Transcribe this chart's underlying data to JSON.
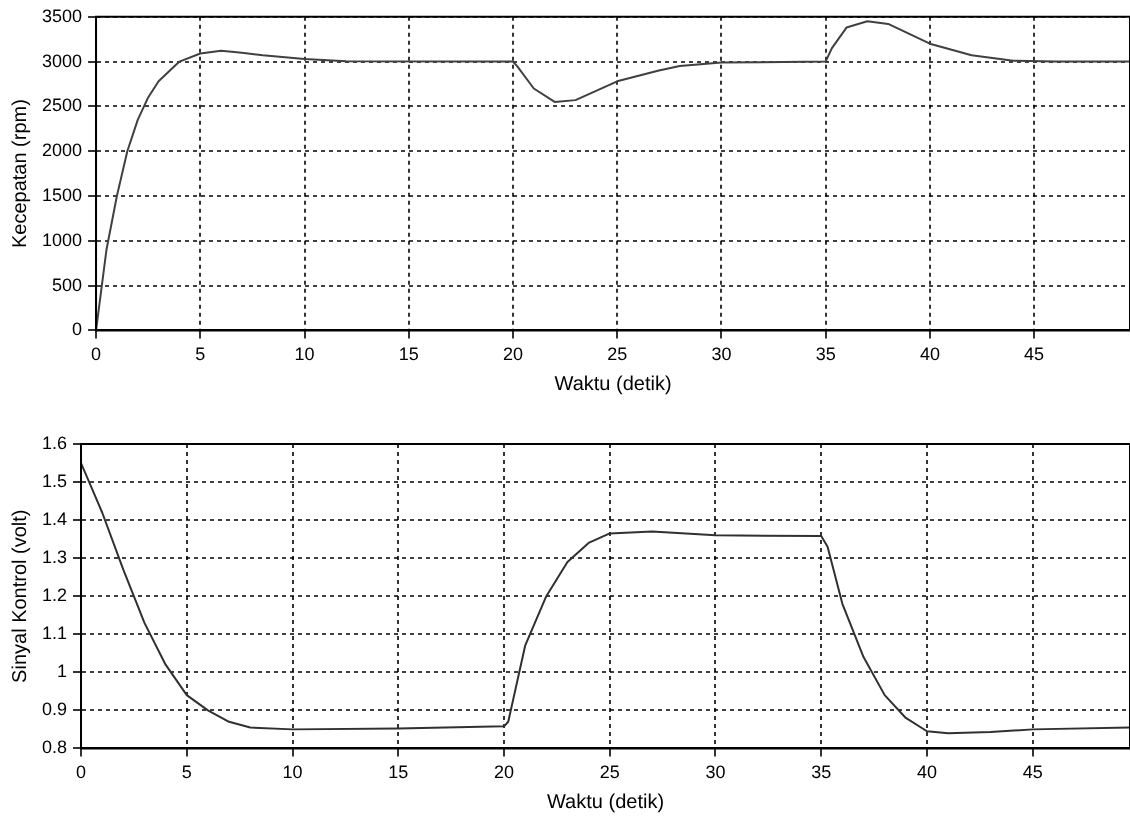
{
  "chart_data": [
    {
      "type": "line",
      "xlabel": "Waktu (detik)",
      "ylabel": "Kecepatan (rpm)",
      "xlim": [
        0,
        49.6
      ],
      "xticks": [
        0,
        5,
        10,
        15,
        20,
        25,
        30,
        35,
        40,
        45
      ],
      "ylim": [
        0,
        3500
      ],
      "yticks": [
        0,
        500,
        1000,
        1500,
        2000,
        2500,
        3000,
        3500
      ],
      "grid": true,
      "line_style": "solid",
      "marker": "none",
      "series": [
        {
          "color": "#404040",
          "x": [
            0,
            0.5,
            1,
            1.5,
            2,
            2.5,
            3,
            4,
            5,
            6,
            7,
            8,
            10,
            12,
            20,
            20.2,
            21,
            22,
            23,
            25,
            27,
            28,
            30,
            35,
            35.3,
            36,
            37,
            38,
            40,
            42,
            44,
            46,
            49.6
          ],
          "values": [
            0,
            900,
            1500,
            2000,
            2350,
            2600,
            2780,
            3000,
            3090,
            3120,
            3100,
            3070,
            3030,
            3005,
            3000,
            2950,
            2700,
            2550,
            2570,
            2780,
            2900,
            2950,
            2990,
            3000,
            3150,
            3380,
            3450,
            3420,
            3200,
            3070,
            3010,
            3000,
            3000
          ]
        }
      ]
    },
    {
      "type": "line",
      "xlabel": "Waktu (detik)",
      "ylabel": "Sinyal Kontrol (volt)",
      "xlim": [
        0,
        49.6
      ],
      "xticks": [
        0,
        5,
        10,
        15,
        20,
        25,
        30,
        35,
        40,
        45
      ],
      "ylim": [
        0.8,
        1.6
      ],
      "yticks": [
        0.8,
        0.9,
        1,
        1.1,
        1.2,
        1.3,
        1.4,
        1.5,
        1.6
      ],
      "grid": true,
      "line_style": "solid",
      "marker": "none",
      "series": [
        {
          "color": "#303030",
          "x": [
            0,
            1,
            2,
            3,
            4,
            5,
            6,
            7,
            8,
            10,
            15,
            20,
            20.2,
            21,
            22,
            23,
            24,
            25,
            27,
            30,
            35,
            35.3,
            36,
            37,
            38,
            39,
            40,
            41,
            43,
            45,
            49.6
          ],
          "values": [
            1.55,
            1.42,
            1.27,
            1.13,
            1.02,
            0.94,
            0.9,
            0.87,
            0.855,
            0.85,
            0.852,
            0.858,
            0.87,
            1.07,
            1.2,
            1.29,
            1.34,
            1.365,
            1.37,
            1.36,
            1.358,
            1.33,
            1.18,
            1.04,
            0.94,
            0.88,
            0.845,
            0.84,
            0.843,
            0.85,
            0.855
          ]
        }
      ]
    }
  ]
}
